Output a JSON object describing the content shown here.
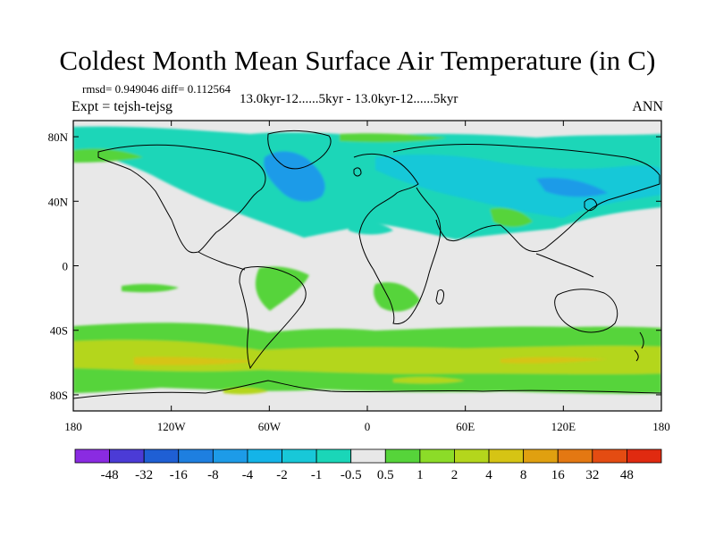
{
  "title": "Coldest Month Mean Surface Air Temperature (in C)",
  "stats_line": "rmsd= 0.949046  diff= 0.112564",
  "expt_line": "Expt = tejsh-tejsg",
  "case_line": "13.0kyr-12......5kyr - 13.0kyr-12......5kyr",
  "season": "ANN",
  "map": {
    "x_ticks": [
      "180",
      "120W",
      "60W",
      "0",
      "60E",
      "120E",
      "180"
    ],
    "y_ticks": [
      "80N",
      "40N",
      "0",
      "40S",
      "80S"
    ],
    "lon_values": [
      -180,
      -120,
      -60,
      0,
      60,
      120,
      180
    ],
    "lat_values": [
      80,
      40,
      0,
      -40,
      -80
    ],
    "lat_range": [
      -90,
      90
    ],
    "lon_range": [
      -180,
      180
    ],
    "background_color": "#e8e8e8"
  },
  "colorbar": {
    "labels": [
      "-48",
      "-32",
      "-16",
      "-8",
      "-4",
      "-2",
      "-1",
      "-0.5",
      "0.5",
      "1",
      "2",
      "4",
      "8",
      "16",
      "32",
      "48"
    ],
    "colors": [
      "#8a2be2",
      "#4b3bd6",
      "#1f5fd4",
      "#1e7fe0",
      "#1d9be8",
      "#14b4e8",
      "#18c8d8",
      "#1ad6b8",
      "#e8e8e8",
      "#56d43a",
      "#8cdc28",
      "#b4d61c",
      "#d6c414",
      "#e0a010",
      "#e47812",
      "#e44c12",
      "#e02a10"
    ]
  }
}
